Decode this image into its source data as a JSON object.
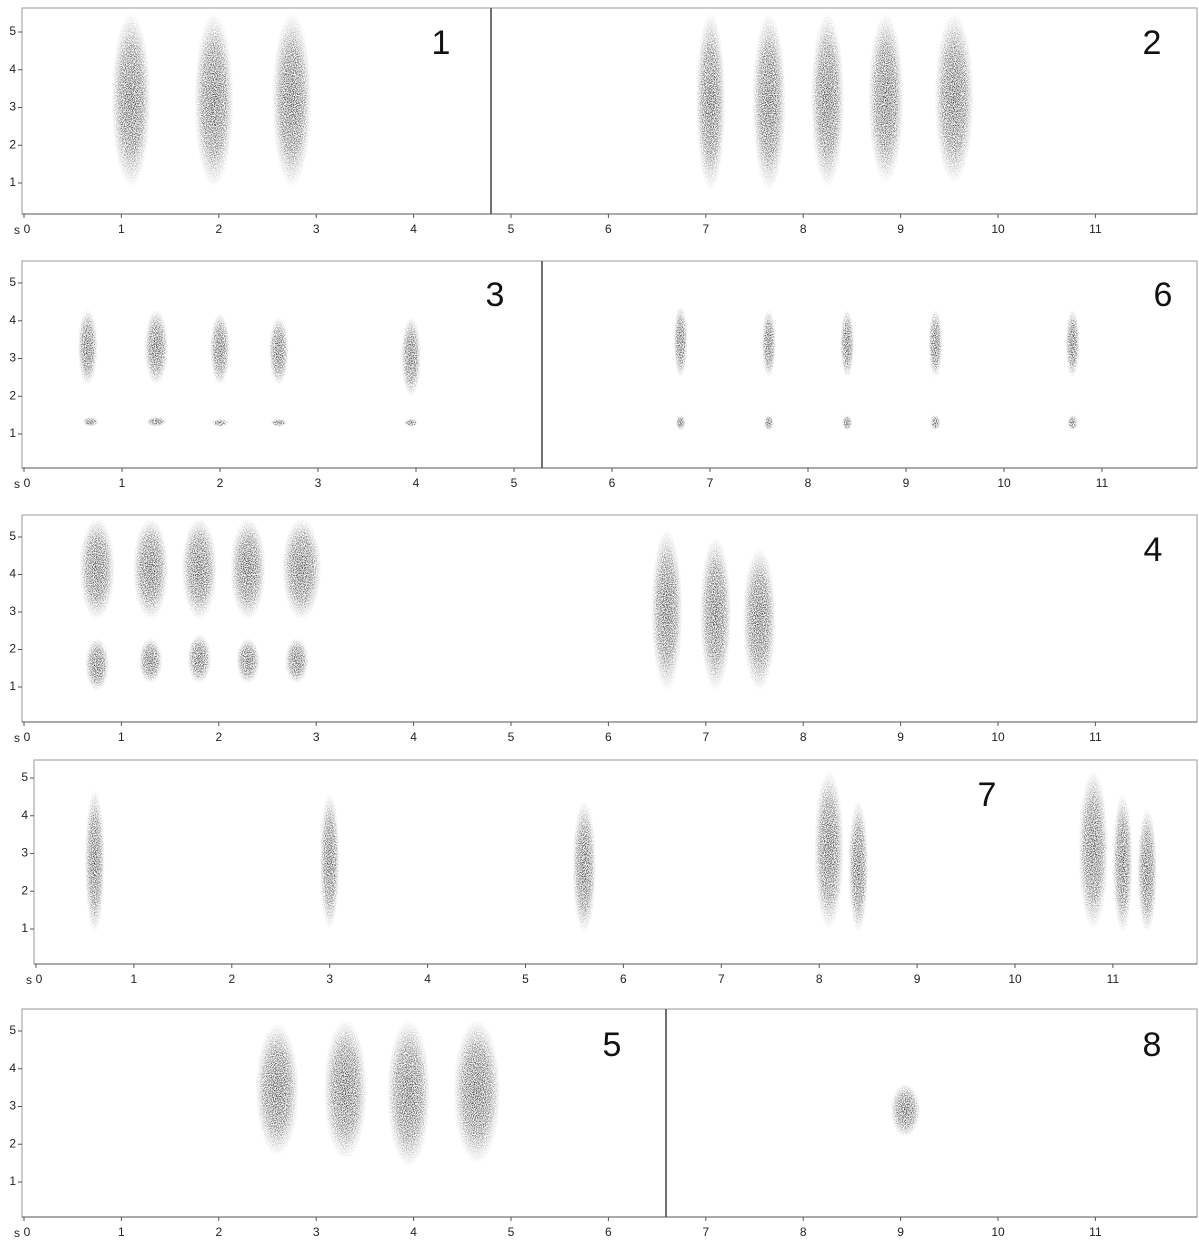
{
  "panels": [
    {
      "labels": [
        "1",
        "2"
      ],
      "x_unit": "s",
      "xticks": [
        0,
        1,
        2,
        3,
        4,
        5,
        6,
        7,
        8,
        9,
        10,
        11
      ],
      "yticks": [
        1,
        2,
        3,
        4,
        5
      ]
    },
    {
      "labels": [
        "3",
        "6"
      ],
      "x_unit": "s",
      "xticks": [
        0,
        1,
        2,
        3,
        4,
        5,
        6,
        7,
        8,
        9,
        10,
        11
      ],
      "yticks": [
        1,
        2,
        3,
        4,
        5
      ]
    },
    {
      "labels": [
        "4"
      ],
      "x_unit": "s",
      "xticks": [
        0,
        1,
        2,
        3,
        4,
        5,
        6,
        7,
        8,
        9,
        10,
        11
      ],
      "yticks": [
        1,
        2,
        3,
        4,
        5
      ]
    },
    {
      "labels": [
        "7"
      ],
      "x_unit": "s",
      "xticks": [
        0,
        1,
        2,
        3,
        4,
        5,
        6,
        7,
        8,
        9,
        10,
        11
      ],
      "yticks": [
        1,
        2,
        3,
        4,
        5
      ]
    },
    {
      "labels": [
        "5",
        "8"
      ],
      "x_unit": "s",
      "xticks": [
        0,
        1,
        2,
        3,
        4,
        5,
        6,
        7,
        8,
        9,
        10,
        11
      ],
      "yticks": [
        1,
        2,
        3,
        4,
        5
      ]
    }
  ]
}
